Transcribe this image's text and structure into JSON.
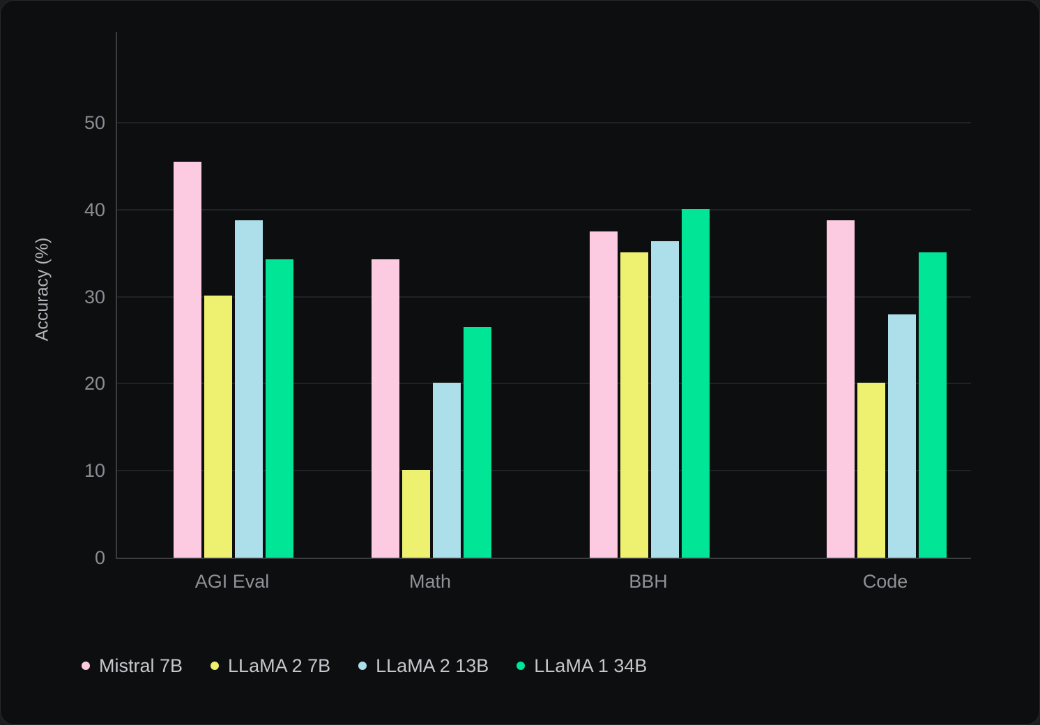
{
  "chart_data": {
    "type": "bar",
    "title": "",
    "categories": [
      "AGI Eval",
      "Math",
      "BBH",
      "Code"
    ],
    "series": [
      {
        "name": "Mistral 7B",
        "color": "#FCCBE1",
        "values": [
          45.5,
          34.3,
          37.5,
          38.8
        ]
      },
      {
        "name": "LLaMA 2 7B",
        "color": "#EEF06F",
        "values": [
          30.1,
          10.1,
          35.1,
          20.1
        ]
      },
      {
        "name": "LLaMA 2 13B",
        "color": "#ACDFEA",
        "values": [
          38.8,
          20.1,
          36.4,
          28.0
        ]
      },
      {
        "name": "LLaMA 1 34B",
        "color": "#00E596",
        "values": [
          34.3,
          26.5,
          40.1,
          35.1
        ]
      }
    ],
    "ylabel": "Accuracy (%)",
    "ytick_labels": [
      "0",
      "10",
      "20",
      "30",
      "40",
      "50"
    ],
    "yticks": [
      0,
      10,
      20,
      30,
      40,
      50
    ],
    "ylim": [
      0,
      60.4
    ],
    "grid": true,
    "legend_position": "bottom-left",
    "colors": {
      "background": "#0D0E0F",
      "gridline": "#212226",
      "axis_line": "#3C3D41",
      "tick_text": "#8B8D94",
      "legend_text": "#C5C7CD"
    }
  }
}
